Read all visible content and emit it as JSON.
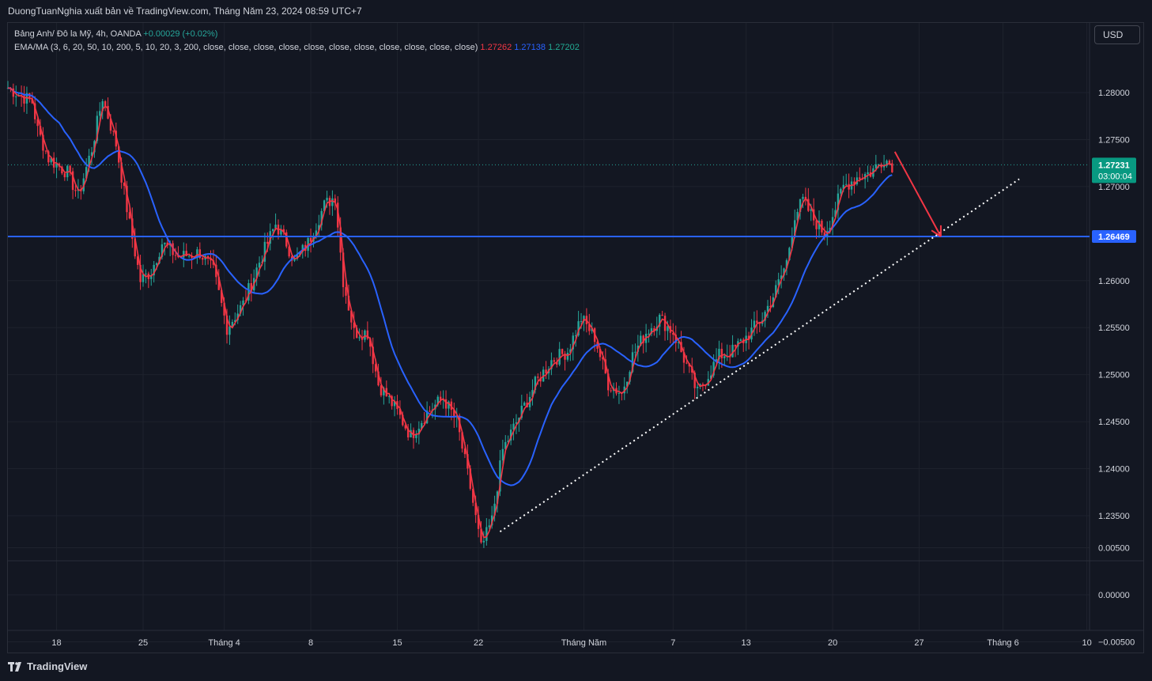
{
  "header": {
    "publisher_line": "DuongTuanNghia xuất bản về TradingView.com, Tháng Năm 23, 2024 08:59 UTC+7"
  },
  "legend": {
    "symbol_line": "Bảng Anh/ Đô la Mỹ, 4h, OANDA",
    "change": "+0.00029 (+0.02%)",
    "indicator_line": "EMA/MA (3, 6, 20, 50, 10, 200, 5, 10, 20, 3, 200, close, close, close, close, close, close, close, close, close, close, close)",
    "value_1": "1.27262",
    "value_2": "1.27138",
    "value_3": "1.27202"
  },
  "currency_button": "USD",
  "footer": {
    "brand": "TradingView"
  },
  "colors": {
    "background": "#131722",
    "grid": "#1e222d",
    "up": "#26a69a",
    "down": "#f23645",
    "fast_ma": "#f23645",
    "slow_ma": "#2962ff",
    "level": "#2962ff",
    "arrow": "#f23645",
    "trendline": "#ffffff"
  },
  "chart_data": {
    "type": "candlestick",
    "title": "Bảng Anh/ Đô la Mỹ, 4h, OANDA",
    "ylim": [
      -0.0065,
      1.2855
    ],
    "y_ticks": [
      "1.28000",
      "1.27500",
      "1.27000",
      "1.26000",
      "1.25500",
      "1.25000",
      "1.24500",
      "1.24000",
      "1.23500",
      "0.00500",
      "0.00000",
      "−0.00500"
    ],
    "x_ticks": [
      "18",
      "25",
      "Tháng 4",
      "8",
      "15",
      "22",
      "Tháng Năm",
      "7",
      "13",
      "20",
      "27",
      "Tháng 6",
      "10"
    ],
    "current_price": {
      "label": "1.27231",
      "countdown": "03:00:04",
      "value": 1.27231
    },
    "horizontal_level": {
      "label": "1.26469",
      "value": 1.26469
    },
    "path_nodes": [
      [
        0,
        1.2805
      ],
      [
        6,
        1.2795
      ],
      [
        9,
        1.279
      ],
      [
        11,
        1.276
      ],
      [
        15,
        1.273
      ],
      [
        22,
        1.2715
      ],
      [
        26,
        1.269
      ],
      [
        31,
        1.274
      ],
      [
        35,
        1.2795
      ],
      [
        40,
        1.2745
      ],
      [
        45,
        1.266
      ],
      [
        49,
        1.26
      ],
      [
        53,
        1.261
      ],
      [
        57,
        1.264
      ],
      [
        63,
        1.2625
      ],
      [
        71,
        1.263
      ],
      [
        76,
        1.261
      ],
      [
        81,
        1.255
      ],
      [
        87,
        1.2575
      ],
      [
        93,
        1.262
      ],
      [
        99,
        1.266
      ],
      [
        103,
        1.264
      ],
      [
        106,
        1.262
      ],
      [
        111,
        1.264
      ],
      [
        117,
        1.268
      ],
      [
        121,
        1.269
      ],
      [
        124,
        1.26
      ],
      [
        128,
        1.2545
      ],
      [
        133,
        1.2545
      ],
      [
        137,
        1.249
      ],
      [
        143,
        1.2465
      ],
      [
        149,
        1.2435
      ],
      [
        155,
        1.246
      ],
      [
        161,
        1.2475
      ],
      [
        166,
        1.245
      ],
      [
        171,
        1.238
      ],
      [
        175,
        1.2315
      ],
      [
        179,
        1.2345
      ],
      [
        183,
        1.242
      ],
      [
        189,
        1.2455
      ],
      [
        195,
        1.249
      ],
      [
        201,
        1.2515
      ],
      [
        207,
        1.2525
      ],
      [
        212,
        1.256
      ],
      [
        217,
        1.254
      ],
      [
        222,
        1.249
      ],
      [
        227,
        1.248
      ],
      [
        231,
        1.252
      ],
      [
        236,
        1.2545
      ],
      [
        241,
        1.256
      ],
      [
        246,
        1.2545
      ],
      [
        251,
        1.251
      ],
      [
        255,
        1.248
      ],
      [
        259,
        1.25
      ],
      [
        263,
        1.252
      ],
      [
        268,
        1.2525
      ],
      [
        273,
        1.254
      ],
      [
        279,
        1.256
      ],
      [
        284,
        1.259
      ],
      [
        288,
        1.262
      ],
      [
        291,
        1.267
      ],
      [
        294,
        1.2685
      ],
      [
        298,
        1.2665
      ],
      [
        302,
        1.265
      ],
      [
        305,
        1.267
      ],
      [
        309,
        1.27
      ],
      [
        314,
        1.271
      ],
      [
        319,
        1.2715
      ],
      [
        324,
        1.273
      ],
      [
        327,
        1.27231
      ]
    ],
    "ma_fast_period": 3,
    "ma_slow_period": 20,
    "trendline": {
      "from": [
        182,
        1.2333
      ],
      "to": [
        374,
        1.2708
      ]
    },
    "projection_arrow": {
      "from": [
        328,
        1.2737
      ],
      "to": [
        345,
        1.2647
      ]
    },
    "x_tick_positions": [
      18,
      50,
      80,
      112,
      144,
      174,
      213,
      246,
      273,
      305,
      337,
      368,
      399
    ],
    "n_bars": 400
  }
}
